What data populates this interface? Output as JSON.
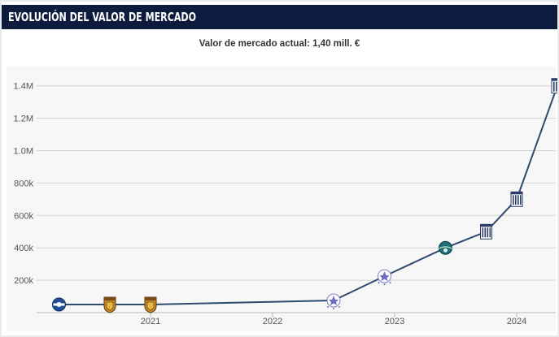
{
  "header": {
    "title": "EVOLUCIÓN DEL VALOR DE MERCADO"
  },
  "subtitle": {
    "label": "Valor de mercado actual:",
    "value": "1,40 mill. €"
  },
  "colors": {
    "header_bg": "#0d1b3e",
    "line": "#2f4a6d",
    "grid": "#d4d4d4",
    "plot_bg": "#f7f7f7"
  },
  "chart_data": {
    "type": "line",
    "x_axis": {
      "type": "date",
      "range": [
        "2020-03",
        "2024-06"
      ],
      "ticks": [
        "2021",
        "2022",
        "2023",
        "2024"
      ]
    },
    "y_axis": {
      "range": [
        0,
        1500000
      ],
      "ticks": [
        "200k",
        "400k",
        "600k",
        "800k",
        "1.0M",
        "1.2M",
        "1.4M"
      ]
    },
    "grid": true,
    "legend": "none",
    "series": [
      {
        "points": [
          {
            "x": "2020-04",
            "y": 50000,
            "icon": "club-crest-blue-icon"
          },
          {
            "x": "2020-09",
            "y": 50000,
            "icon": "club-crest-gold-icon"
          },
          {
            "x": "2021-01",
            "y": 50000,
            "icon": "club-crest-gold-icon"
          },
          {
            "x": "2022-07",
            "y": 75000,
            "icon": "club-crest-purple-icon"
          },
          {
            "x": "2022-12",
            "y": 225000,
            "icon": "club-crest-purple-icon"
          },
          {
            "x": "2023-06",
            "y": 400000,
            "icon": "club-crest-teal-icon"
          },
          {
            "x": "2023-10",
            "y": 500000,
            "icon": "club-crest-striped-icon"
          },
          {
            "x": "2024-01",
            "y": 700000,
            "icon": "club-crest-striped-icon"
          },
          {
            "x": "2024-05",
            "y": 1400000,
            "icon": "club-crest-striped-icon"
          }
        ]
      }
    ]
  }
}
